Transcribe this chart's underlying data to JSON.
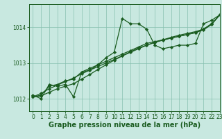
{
  "title": "Graphe pression niveau de la mer (hPa)",
  "bg_color": "#c8e8e0",
  "grid_color": "#88c0b0",
  "line_color": "#1a5c20",
  "xlim": [
    -0.5,
    23
  ],
  "ylim": [
    1011.65,
    1014.65
  ],
  "yticks": [
    1012,
    1013,
    1014
  ],
  "xticks": [
    0,
    1,
    2,
    3,
    4,
    5,
    6,
    7,
    8,
    9,
    10,
    11,
    12,
    13,
    14,
    15,
    16,
    17,
    18,
    19,
    20,
    21,
    22,
    23
  ],
  "series1": [
    1012.1,
    1012.0,
    1012.4,
    1012.35,
    1012.4,
    1012.05,
    1012.75,
    1012.8,
    1012.95,
    1013.15,
    1013.3,
    1014.25,
    1014.1,
    1014.1,
    1013.95,
    1013.5,
    1013.4,
    1013.45,
    1013.5,
    1013.5,
    1013.55,
    1014.1,
    1014.2,
    1014.35
  ],
  "series2": [
    1012.05,
    1012.1,
    1012.35,
    1012.4,
    1012.5,
    1012.55,
    1012.75,
    1012.85,
    1012.95,
    1013.05,
    1013.15,
    1013.25,
    1013.35,
    1013.45,
    1013.55,
    1013.6,
    1013.65,
    1013.7,
    1013.75,
    1013.8,
    1013.85,
    1013.95,
    1014.1,
    1014.35
  ],
  "series3": [
    1012.05,
    1012.15,
    1012.28,
    1012.38,
    1012.48,
    1012.58,
    1012.7,
    1012.8,
    1012.9,
    1013.0,
    1013.1,
    1013.2,
    1013.3,
    1013.4,
    1013.5,
    1013.58,
    1013.65,
    1013.72,
    1013.78,
    1013.83,
    1013.88,
    1013.95,
    1014.1,
    1014.35
  ],
  "series4": [
    1012.05,
    1012.08,
    1012.18,
    1012.28,
    1012.35,
    1012.42,
    1012.55,
    1012.68,
    1012.82,
    1012.95,
    1013.08,
    1013.2,
    1013.32,
    1013.42,
    1013.5,
    1013.58,
    1013.64,
    1013.7,
    1013.75,
    1013.8,
    1013.85,
    1013.93,
    1014.08,
    1014.35
  ],
  "marker": "D",
  "marker_size": 2.2,
  "line_width": 0.9,
  "title_fontsize": 7,
  "tick_fontsize": 5.5
}
